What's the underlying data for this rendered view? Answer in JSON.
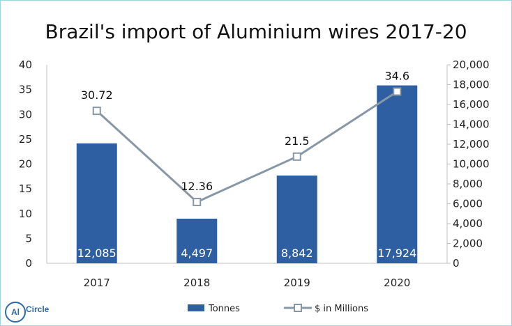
{
  "chart_data": {
    "type": "bar",
    "title": "Brazil's import of Aluminium wires 2017-20",
    "categories": [
      "2017",
      "2018",
      "2019",
      "2020"
    ],
    "series": [
      {
        "name": "Tonnes",
        "type": "bar",
        "axis": "right",
        "values": [
          12085,
          4497,
          8842,
          17924
        ],
        "labels": [
          "12,085",
          "4,497",
          "8,842",
          "17,924"
        ],
        "color": "#2e5fa3"
      },
      {
        "name": "$ in Millions",
        "type": "line",
        "axis": "left",
        "values": [
          30.72,
          12.36,
          21.5,
          34.6
        ],
        "labels": [
          "30.72",
          "12.36",
          "21.5",
          "34.6"
        ],
        "color": "#8897a6"
      }
    ],
    "left_axis": {
      "ylim": [
        0,
        40
      ],
      "ticks": [
        "0",
        "5",
        "10",
        "15",
        "20",
        "25",
        "30",
        "35",
        "40"
      ]
    },
    "right_axis": {
      "ylim": [
        0,
        20000
      ],
      "ticks": [
        "0",
        "2,000",
        "4,000",
        "6,000",
        "8,000",
        "10,000",
        "12,000",
        "14,000",
        "16,000",
        "18,000",
        "20,000"
      ]
    },
    "grid": false,
    "legend": "bottom"
  },
  "logo": {
    "text": "Circle",
    "mark": "Al"
  }
}
